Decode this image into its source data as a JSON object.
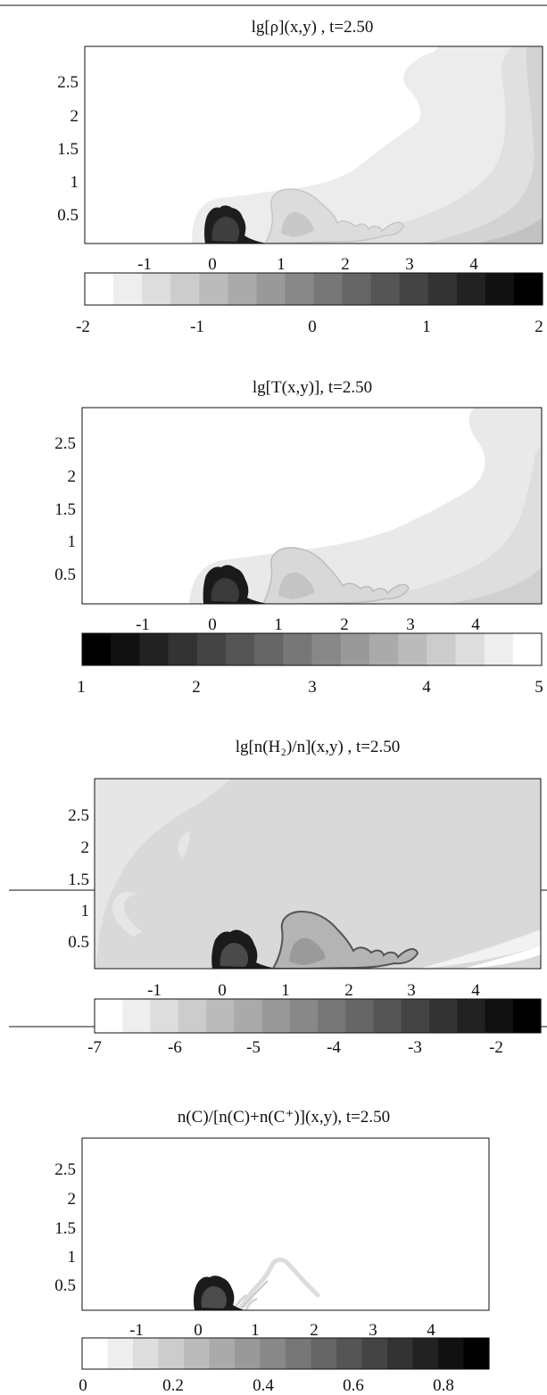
{
  "chart_data": [
    {
      "type": "heatmap",
      "title": "lg[ρ](x,y) , t=2.50",
      "x_ticks": [
        "-1",
        "0",
        "1",
        "2",
        "3",
        "4"
      ],
      "y_ticks": [
        "2.5",
        "2",
        "1.5",
        "1",
        "0.5"
      ],
      "xlim": [
        -1.5,
        4.9
      ],
      "ylim": [
        0,
        3.0
      ],
      "colorbar": {
        "range": [
          -2,
          2
        ],
        "levels": 16,
        "direction": "light-to-dark",
        "ticks": [
          "-2",
          "-1",
          "0",
          "1",
          "2"
        ]
      }
    },
    {
      "type": "heatmap",
      "title": "lg[T(x,y)], t=2.50",
      "x_ticks": [
        "-1",
        "0",
        "1",
        "2",
        "3",
        "4"
      ],
      "y_ticks": [
        "2.5",
        "2",
        "1.5",
        "1",
        "0.5"
      ],
      "xlim": [
        -1.5,
        4.9
      ],
      "ylim": [
        0,
        3.0
      ],
      "colorbar": {
        "range": [
          1,
          5
        ],
        "levels": 16,
        "direction": "dark-to-light",
        "ticks": [
          "1",
          "2",
          "3",
          "4",
          "5"
        ]
      }
    },
    {
      "type": "heatmap",
      "title": "lg[n(H₂)/n](x,y) , t=2.50",
      "x_ticks": [
        "-1",
        "0",
        "1",
        "2",
        "3",
        "4"
      ],
      "y_ticks": [
        "2.5",
        "2",
        "1.5",
        "1",
        "0.5"
      ],
      "xlim": [
        -1.5,
        4.9
      ],
      "ylim": [
        0,
        3.0
      ],
      "colorbar": {
        "range": [
          -7,
          -2
        ],
        "levels": 16,
        "direction": "light-to-dark",
        "ticks": [
          "-7",
          "-6",
          "-5",
          "-4",
          "-3",
          "-2"
        ]
      }
    },
    {
      "type": "heatmap",
      "title": "n(C)/[n(C)+n(C⁺)](x,y), t=2.50",
      "x_ticks": [
        "-1",
        "0",
        "1",
        "2",
        "3",
        "4"
      ],
      "y_ticks": [
        "2.5",
        "2",
        "1.5",
        "1",
        "0.5"
      ],
      "xlim": [
        -1.5,
        4.9
      ],
      "ylim": [
        0,
        3.0
      ],
      "colorbar": {
        "range": [
          0,
          0.9
        ],
        "levels": 16,
        "direction": "light-to-dark",
        "ticks": [
          "0",
          "0.2",
          "0.4",
          "0.6",
          "0.8"
        ]
      }
    }
  ]
}
